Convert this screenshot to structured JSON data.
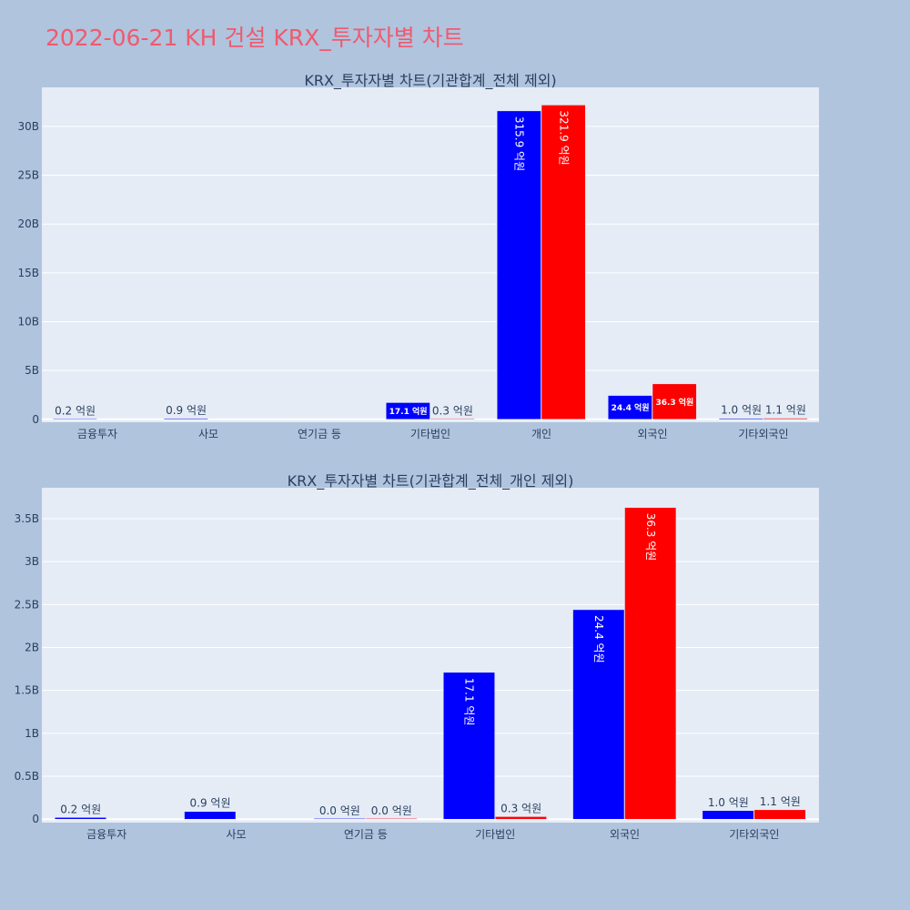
{
  "page": {
    "title": "2022-06-21 KH 건설 KRX_투자자별 차트"
  },
  "colors": {
    "buy": "#0000ff",
    "sell": "#ff0000",
    "plot_bg": "#e5ecf6",
    "paper_bg": "#b0c4de",
    "title": "#ef5a6f"
  },
  "chart_data": [
    {
      "type": "bar",
      "title": "KRX_투자자별 차트(기관합계_전체 제외)",
      "categories": [
        "금융투자",
        "사모",
        "연기금 등",
        "기타법인",
        "개인",
        "외국인",
        "기타외국인"
      ],
      "series": [
        {
          "color": "#0000ff",
          "values": [
            0.02,
            0.09,
            null,
            1.71,
            31.59,
            2.44,
            0.1
          ],
          "labels": [
            "0.2 억원",
            "0.9 억원",
            "",
            "17.1 억원",
            "315.9 억원",
            "24.4 억원",
            "1.0 억원"
          ]
        },
        {
          "color": "#ff0000",
          "values": [
            null,
            null,
            null,
            0.03,
            32.19,
            3.63,
            0.11
          ],
          "labels": [
            "",
            "",
            "",
            "0.3 억원",
            "321.9 억원",
            "36.3 억원",
            "1.1 억원"
          ]
        }
      ],
      "yticks": [
        "0",
        "5B",
        "10B",
        "15B",
        "20B",
        "25B",
        "30B"
      ],
      "ytick_values": [
        0,
        5,
        10,
        15,
        20,
        25,
        30
      ],
      "ylim": [
        -0.3,
        34.0
      ],
      "grid": true
    },
    {
      "type": "bar",
      "title": "KRX_투자자별 차트(기관합계_전체_개인 제외)",
      "categories": [
        "금융투자",
        "사모",
        "연기금 등",
        "기타법인",
        "외국인",
        "기타외국인"
      ],
      "series": [
        {
          "color": "#0000ff",
          "values": [
            0.02,
            0.09,
            0.0,
            1.71,
            2.44,
            0.1
          ],
          "labels": [
            "0.2 억원",
            "0.9 억원",
            "0.0 억원",
            "17.1 억원",
            "24.4 억원",
            "1.0 억원"
          ]
        },
        {
          "color": "#ff0000",
          "values": [
            null,
            null,
            0.0,
            0.03,
            3.63,
            0.11
          ],
          "labels": [
            "",
            "",
            "0.0 억원",
            "0.3 억원",
            "36.3 억원",
            "1.1 억원"
          ]
        }
      ],
      "yticks": [
        "0",
        "0.5B",
        "1B",
        "1.5B",
        "2B",
        "2.5B",
        "3B",
        "3.5B"
      ],
      "ytick_values": [
        0,
        0.5,
        1,
        1.5,
        2,
        2.5,
        3,
        3.5
      ],
      "ylim": [
        -0.04,
        3.86
      ],
      "grid": true
    }
  ]
}
